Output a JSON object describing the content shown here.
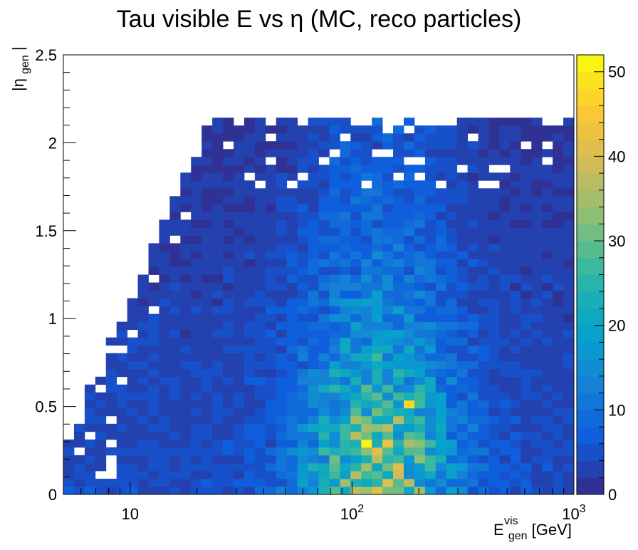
{
  "chart_data": {
    "type": "heatmap",
    "title": "Tau visible E vs η (MC, reco particles)",
    "xlabel": {
      "main": "E",
      "sup": "vis",
      "sub": "gen",
      "unit": " [GeV]"
    },
    "ylabel": {
      "left": "|η",
      "sub": "gen",
      "right": "|"
    },
    "x_scale": "log",
    "xlim": [
      5,
      1000
    ],
    "ylim": [
      0,
      2.5
    ],
    "x_bins": 48,
    "y_bins": 56,
    "x_ticks": [
      {
        "value": 10,
        "base": "10",
        "exp": ""
      },
      {
        "value": 100,
        "base": "10",
        "exp": "2"
      },
      {
        "value": 1000,
        "base": "10",
        "exp": "3"
      }
    ],
    "y_ticks": [
      {
        "value": 0,
        "label": "0"
      },
      {
        "value": 0.5,
        "label": "0.5"
      },
      {
        "value": 1,
        "label": "1"
      },
      {
        "value": 1.5,
        "label": "1.5"
      },
      {
        "value": 2,
        "label": "2"
      },
      {
        "value": 2.5,
        "label": "2.5"
      }
    ],
    "z_range": [
      0,
      52
    ],
    "z_ticks": [
      {
        "value": 0,
        "label": "0"
      },
      {
        "value": 10,
        "label": "10"
      },
      {
        "value": 20,
        "label": "20"
      },
      {
        "value": 30,
        "label": "30"
      },
      {
        "value": 40,
        "label": "40"
      },
      {
        "value": 50,
        "label": "50"
      }
    ],
    "palette": "ROOT kBird",
    "peak": {
      "x": 120,
      "y": 0.28,
      "z": 52
    },
    "secondary_peaks": [
      {
        "x": 118,
        "y": 0.57,
        "z": 44
      },
      {
        "x": 180,
        "y": 0.52,
        "z": 46
      },
      {
        "x": 150,
        "y": 0.31,
        "z": 40
      }
    ]
  }
}
